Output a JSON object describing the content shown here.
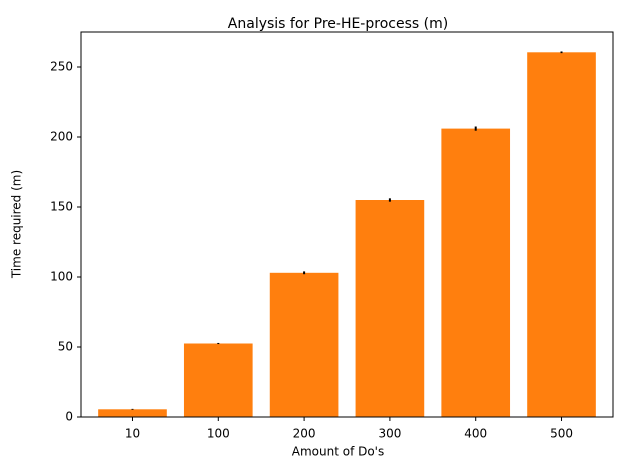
{
  "chart_data": {
    "type": "bar",
    "title": "Analysis for Pre-HE-process (m)",
    "xlabel": "Amount of Do's",
    "ylabel": "Time required (m)",
    "categories": [
      "10",
      "100",
      "200",
      "300",
      "400",
      "500"
    ],
    "values": [
      5.5,
      52.5,
      103.0,
      155.0,
      206.0,
      260.5
    ],
    "errors": [
      0.3,
      0.4,
      1.0,
      1.2,
      1.5,
      0.6
    ],
    "ylim": [
      0,
      275
    ],
    "yticks": [
      0,
      50,
      100,
      150,
      200,
      250
    ],
    "grid": false,
    "legend": "none",
    "colors": {
      "bar": "#ff7f0e",
      "error_bar": "#000000",
      "axis": "#000000"
    }
  }
}
